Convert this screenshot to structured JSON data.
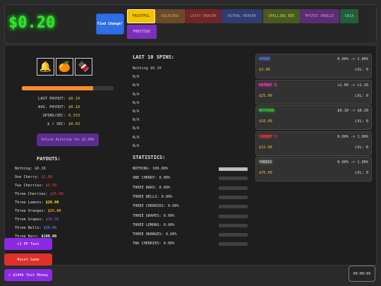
{
  "header": {
    "money": "$0.20",
    "find_change_label": "Find Change!",
    "tabs": [
      {
        "label": "FRUITFUL",
        "bg": "#f3c400",
        "fg": "#2b2200",
        "border": "#fff3a0"
      },
      {
        "label": "WILDCARD",
        "bg": "#6b4a26",
        "fg": "#c9a57a",
        "border": "#6b4a26"
      },
      {
        "label": "LUCKY DRAGON",
        "bg": "#6e2626",
        "fg": "#d38989",
        "border": "#6e2626"
      },
      {
        "label": "ASTRAL REAVER",
        "bg": "#2f3d6e",
        "fg": "#9fb0e6",
        "border": "#2f3d6e"
      },
      {
        "label": "SPELLING BEE",
        "bg": "#4a5a1e",
        "fg": "#c1d179",
        "border": "#4a5a1e"
      },
      {
        "label": "MYSTIC ORACLE",
        "bg": "#5a2e72",
        "fg": "#cfa2e6",
        "border": "#5a2e72"
      },
      {
        "label": "GAIA",
        "bg": "#245e3c",
        "fg": "#8fd7aa",
        "border": "#245e3c"
      },
      {
        "label": "PRESTIGE",
        "bg": "#7b2fbf",
        "fg": "#e9d6ff",
        "border": "#7b2fbf"
      }
    ]
  },
  "slot": {
    "reels": [
      {
        "icon": "bell-icon",
        "glyph": "🔔"
      },
      {
        "icon": "orange-icon",
        "glyph": "🍊"
      },
      {
        "icon": "chocolate-bar-icon",
        "glyph": "🍫"
      }
    ],
    "progress": 0.78,
    "stats": [
      {
        "label": "LAST PAYOUT:",
        "value": "$0.10"
      },
      {
        "label": "AVG. PAYOUT:",
        "value": "$0.10"
      },
      {
        "label": "SPINS/SEC:",
        "value": "0.333"
      },
      {
        "label": "$ / SEC:",
        "value": "$0.03"
      }
    ],
    "autospin_label": "Unlock Autoloop for $1.00k"
  },
  "payouts": {
    "title": "PAYOUTS:",
    "items": [
      {
        "label": "Nothing:",
        "value": "$0.10",
        "color": "#cfcfcf"
      },
      {
        "label": "One Cherry:",
        "value": "$1.00",
        "color": "#ff3b3b"
      },
      {
        "label": "Two Cherries:",
        "value": "$5.00",
        "color": "#ff3b3b"
      },
      {
        "label": "Three Cherries:",
        "value": "$25.00",
        "color": "#ff3b3b"
      },
      {
        "label": "Three Lemons:",
        "value": "$20.00",
        "color": "#ffe600"
      },
      {
        "label": "Three Oranges:",
        "value": "$25.00",
        "color": "#ff9d1c"
      },
      {
        "label": "Three Grapes:",
        "value": "$30.00",
        "color": "#a24ddb"
      },
      {
        "label": "Three Bells:",
        "value": "$50.00",
        "color": "#4a9cff"
      },
      {
        "label": "Three Bars:",
        "value": "$100.00",
        "color": "#f2f2f2"
      }
    ]
  },
  "last_spins": {
    "title": "LAST 10 SPINS:",
    "items": [
      "Nothing $0.10",
      "N/A",
      "N/A",
      "N/A",
      "N/A",
      "N/A",
      "N/A",
      "N/A",
      "N/A",
      "N/A"
    ]
  },
  "statistics": {
    "title": "STATISTICS:",
    "items": [
      {
        "label": "NOTHING: 100.00%",
        "pct": 1.0
      },
      {
        "label": "ONE CHERRY: 0.00%",
        "pct": 0
      },
      {
        "label": "THREE BARS: 0.00%",
        "pct": 0
      },
      {
        "label": "THREE BELLS: 0.00%",
        "pct": 0
      },
      {
        "label": "THREE CHERRIES: 0.00%",
        "pct": 0
      },
      {
        "label": "THREE GRAPES: 0.00%",
        "pct": 0
      },
      {
        "label": "THREE LEMONS: 0.00%",
        "pct": 0
      },
      {
        "label": "THREE ORANGES: 0.00%",
        "pct": 0
      },
      {
        "label": "TWO CHERRIES: 0.00%",
        "pct": 0
      }
    ]
  },
  "upgrades": [
    {
      "name": "SPEED",
      "color": "#5a7cff",
      "rate": "0.00% -> 1.00%",
      "cost": "$3.00",
      "level": "LVL: 0"
    },
    {
      "name": "PAYOUT X",
      "color": "#ff3bd0",
      "rate": "x1.00 -> x1.10",
      "cost": "$25.00",
      "level": "LVL: 0"
    },
    {
      "name": "NOTHING",
      "color": "#38e038",
      "rate": "$0.10 -> $0.20",
      "cost": "$10.00",
      "level": "LVL: 0"
    },
    {
      "name": "CHERRY %",
      "color": "#ff3b3b",
      "rate": "0.00% -> 1.00%",
      "cost": "$12.00",
      "level": "LVL: 0"
    },
    {
      "name": "THREES",
      "color": "#b8b8b8",
      "rate": "0.00% -> 1.00%",
      "cost": "$75.00",
      "level": "LVL: 0"
    }
  ],
  "dev": {
    "pp_test": "+1 PP Test",
    "reset": "Reset Game",
    "money_test": "+ $144k Test Money"
  },
  "timer": "00:00:06"
}
